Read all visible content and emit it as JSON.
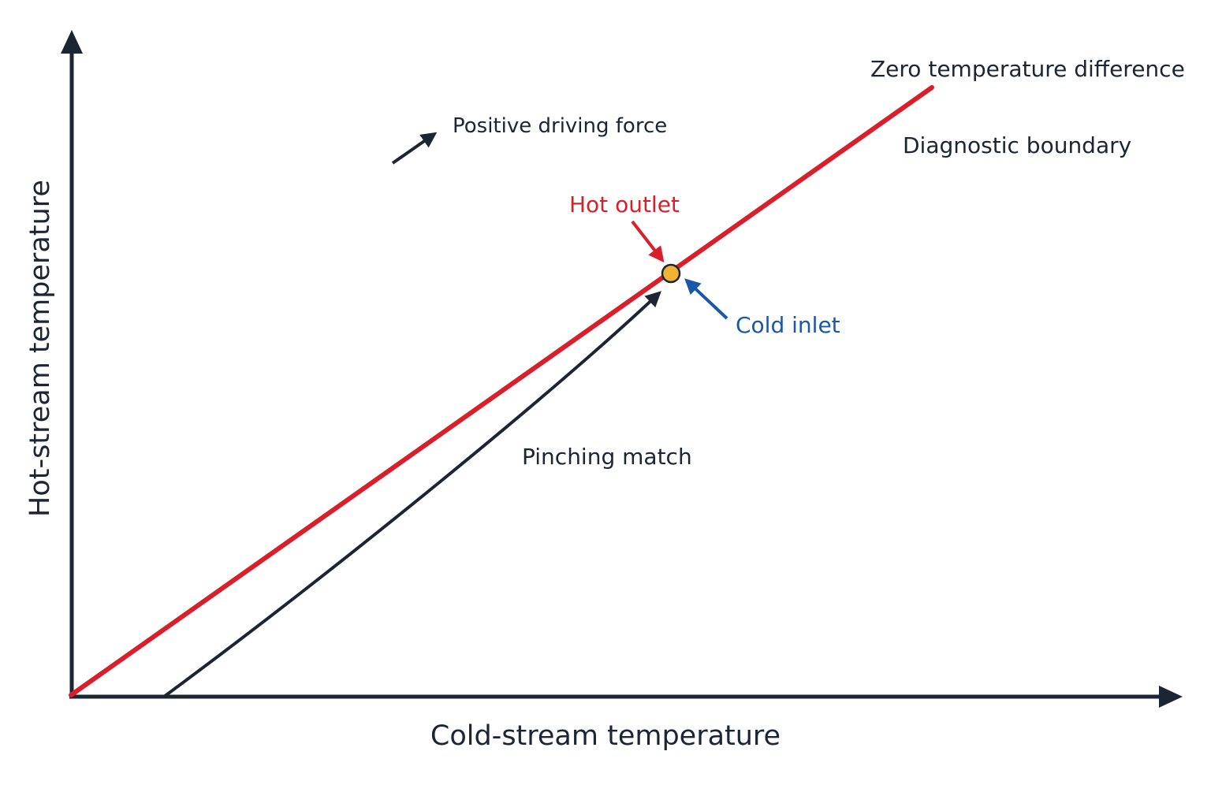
{
  "axes": {
    "x_title": "Cold-stream temperature",
    "y_title": "Hot-stream temperature"
  },
  "lines": {
    "zero_difference_label": "Zero temperature difference",
    "boundary_label": "Diagnostic boundary",
    "pinching_label": "Pinching match",
    "positive_force_label": "Positive driving force"
  },
  "pinch_point": {
    "hot_outlet_label": "Hot outlet",
    "cold_inlet_label": "Cold inlet"
  },
  "colors": {
    "axis": "#1b2533",
    "zero_difference_line": "#d91f2a",
    "pinching_curve": "#1b2533",
    "pinch_marker_fill": "#f2b233",
    "hot_outlet": "#d91f2a",
    "cold_inlet": "#1a57a8"
  }
}
